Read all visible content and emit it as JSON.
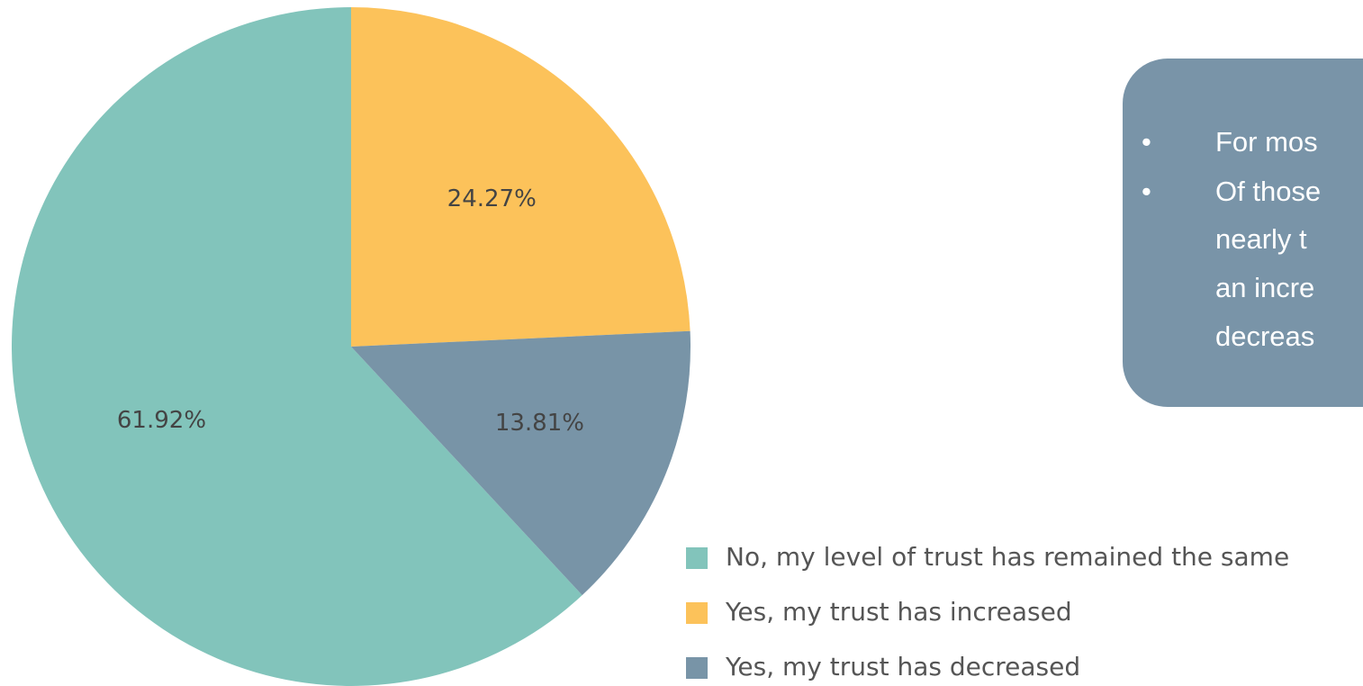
{
  "chart_data": {
    "type": "pie",
    "categories": [
      "No, my level of trust has remained the same",
      "Yes, my trust has increased",
      "Yes, my trust has decreased"
    ],
    "values": [
      61.92,
      24.27,
      13.81
    ],
    "value_labels": [
      "61.92%",
      "24.27%",
      "13.81%"
    ],
    "colors": [
      "#82c4bb",
      "#fcc25a",
      "#7894a7"
    ],
    "legend": "bottom-right"
  },
  "callout": {
    "lines": [
      {
        "bullet": "•",
        "text": "For mos"
      },
      {
        "bullet": "•",
        "text": "Of those"
      },
      {
        "text": "nearly t"
      },
      {
        "text": "an incre"
      },
      {
        "text": "decreas"
      }
    ]
  }
}
